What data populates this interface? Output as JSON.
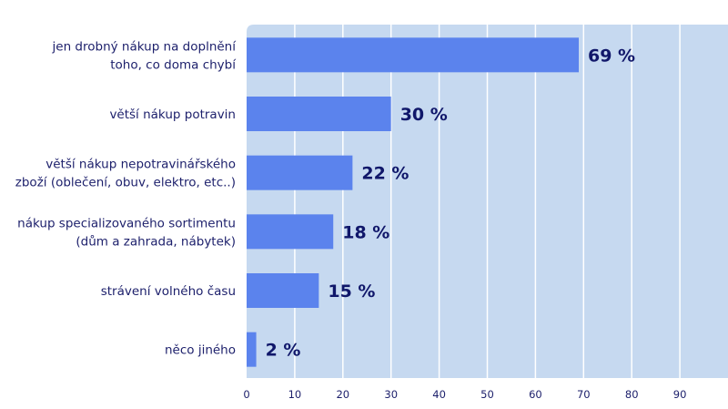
{
  "chart_data": {
    "type": "bar",
    "orientation": "horizontal",
    "categories": [
      [
        "jen drobný nákup na doplnění",
        "toho, co doma chybí"
      ],
      [
        "větší nákup potravin"
      ],
      [
        "větší nákup nepotravinářského",
        "zboží (oblečení, obuv, elektro, etc..)"
      ],
      [
        "nákup specializovaného sortimentu",
        "(dům a zahrada, nábytek)"
      ],
      [
        "strávení volného času"
      ],
      [
        "něco jiného"
      ]
    ],
    "values": [
      69,
      30,
      22,
      18,
      15,
      2
    ],
    "value_labels": [
      "69 %",
      "30 %",
      "22 %",
      "18 %",
      "15 %",
      "2 %"
    ],
    "xticks": [
      0,
      10,
      20,
      30,
      40,
      50,
      60,
      70,
      80,
      90
    ],
    "xlim": [
      0,
      100
    ],
    "grid": true,
    "colors": {
      "bar": "#5b83ed",
      "background": "#c6d9f0",
      "grid": "#ffffff",
      "text": "#1c1f6b"
    }
  }
}
